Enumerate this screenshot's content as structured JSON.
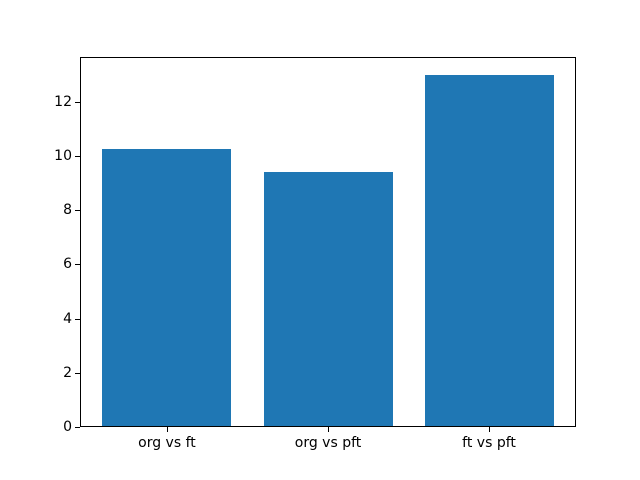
{
  "chart_data": {
    "type": "bar",
    "title": "",
    "xlabel": "",
    "ylabel": "",
    "categories": [
      "org vs ft",
      "org vs pft",
      "ft vs pft"
    ],
    "values": [
      10.25,
      9.4,
      13.0
    ],
    "yticks": [
      0,
      2,
      4,
      6,
      8,
      10,
      12
    ],
    "ytick_labels": [
      "0",
      "2",
      "4",
      "6",
      "8",
      "10",
      "12"
    ],
    "ylim": [
      0,
      13.65
    ],
    "bar_color": "#1f77b4",
    "spine_color": "#000000",
    "background_color": "#ffffff",
    "grid": false,
    "legend": "none"
  }
}
